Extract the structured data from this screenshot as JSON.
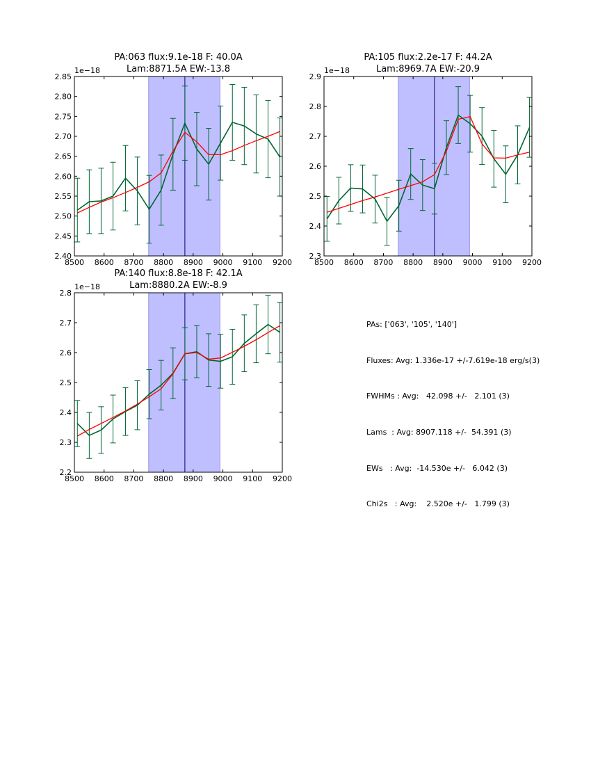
{
  "chart_data": [
    {
      "type": "line",
      "title": [
        "PA:063 flux:9.1e-18 F: 40.0A",
        "Lam:8871.5A EW:-13.8"
      ],
      "offset_label": "1e−18",
      "xlim": [
        8500,
        9200
      ],
      "ylim": [
        2.4,
        2.85
      ],
      "xticks": [
        "8500",
        "8600",
        "8700",
        "8800",
        "8900",
        "9000",
        "9100",
        "9200"
      ],
      "yticks": [
        "2.40",
        "2.45",
        "2.50",
        "2.55",
        "2.60",
        "2.65",
        "2.70",
        "2.75",
        "2.80",
        "2.85"
      ],
      "ytick_values": [
        2.4,
        2.45,
        2.5,
        2.55,
        2.6,
        2.65,
        2.7,
        2.75,
        2.8,
        2.85
      ],
      "shaded_region": [
        8750,
        8990
      ],
      "vline": 8872,
      "series": [
        {
          "role": "data",
          "color": "#006633",
          "x": [
            8510,
            8550,
            8590,
            8630,
            8672,
            8712,
            8752,
            8792,
            8832,
            8872,
            8912,
            8952,
            8992,
            9032,
            9072,
            9112,
            9152,
            9192
          ],
          "y": [
            2.515,
            2.536,
            2.538,
            2.55,
            2.595,
            2.563,
            2.517,
            2.565,
            2.655,
            2.733,
            2.668,
            2.63,
            2.683,
            2.735,
            2.726,
            2.706,
            2.693,
            2.648
          ],
          "err": [
            0.08,
            0.08,
            0.082,
            0.085,
            0.082,
            0.085,
            0.085,
            0.088,
            0.09,
            0.093,
            0.092,
            0.09,
            0.093,
            0.095,
            0.097,
            0.098,
            0.097,
            0.098
          ]
        },
        {
          "role": "model",
          "color": "#ff0000",
          "x": [
            8510,
            8550,
            8590,
            8630,
            8672,
            8712,
            8752,
            8792,
            8832,
            8872,
            8912,
            8952,
            8992,
            9032,
            9072,
            9112,
            9152,
            9192
          ],
          "y": [
            2.508,
            2.522,
            2.535,
            2.546,
            2.559,
            2.572,
            2.586,
            2.608,
            2.663,
            2.71,
            2.686,
            2.654,
            2.654,
            2.664,
            2.677,
            2.689,
            2.7,
            2.712
          ]
        }
      ]
    },
    {
      "type": "line",
      "title": [
        "PA:105 flux:2.2e-17 F: 44.2A",
        "Lam:8969.7A EW:-20.9"
      ],
      "offset_label": "1e−18",
      "xlim": [
        8500,
        9200
      ],
      "ylim": [
        2.3,
        2.9
      ],
      "xticks": [
        "8500",
        "8600",
        "8700",
        "8800",
        "8900",
        "9000",
        "9100",
        "9200"
      ],
      "yticks": [
        "2.3",
        "2.4",
        "2.5",
        "2.6",
        "2.7",
        "2.8",
        "2.9"
      ],
      "ytick_values": [
        2.3,
        2.4,
        2.5,
        2.6,
        2.7,
        2.8,
        2.9
      ],
      "shaded_region": [
        8750,
        8990
      ],
      "vline": 8872,
      "series": [
        {
          "role": "data",
          "color": "#006633",
          "x": [
            8510,
            8550,
            8590,
            8630,
            8672,
            8712,
            8752,
            8792,
            8832,
            8872,
            8912,
            8952,
            8992,
            9032,
            9072,
            9112,
            9152,
            9192
          ],
          "y": [
            2.424,
            2.485,
            2.527,
            2.524,
            2.49,
            2.416,
            2.468,
            2.574,
            2.537,
            2.525,
            2.662,
            2.771,
            2.742,
            2.701,
            2.625,
            2.573,
            2.638,
            2.73
          ],
          "err": [
            0.075,
            0.078,
            0.078,
            0.08,
            0.08,
            0.08,
            0.085,
            0.085,
            0.085,
            0.085,
            0.09,
            0.095,
            0.095,
            0.095,
            0.095,
            0.095,
            0.097,
            0.1
          ]
        },
        {
          "role": "model",
          "color": "#ff0000",
          "x": [
            8510,
            8550,
            8590,
            8630,
            8672,
            8712,
            8752,
            8792,
            8832,
            8872,
            8912,
            8952,
            8992,
            9032,
            9072,
            9112,
            9152,
            9192
          ],
          "y": [
            2.446,
            2.459,
            2.472,
            2.485,
            2.497,
            2.51,
            2.523,
            2.535,
            2.548,
            2.572,
            2.65,
            2.757,
            2.766,
            2.675,
            2.628,
            2.627,
            2.638,
            2.647
          ]
        }
      ]
    },
    {
      "type": "line",
      "title": [
        "PA:140 flux:8.8e-18 F: 42.1A",
        "Lam:8880.2A EW:-8.9"
      ],
      "offset_label": "1e−18",
      "xlim": [
        8500,
        9200
      ],
      "ylim": [
        2.2,
        2.8
      ],
      "xticks": [
        "8500",
        "8600",
        "8700",
        "8800",
        "8900",
        "9000",
        "9100",
        "9200"
      ],
      "yticks": [
        "2.2",
        "2.3",
        "2.4",
        "2.5",
        "2.6",
        "2.7",
        "2.8"
      ],
      "ytick_values": [
        2.2,
        2.3,
        2.4,
        2.5,
        2.6,
        2.7,
        2.8
      ],
      "shaded_region": [
        8750,
        8990
      ],
      "vline": 8872,
      "series": [
        {
          "role": "data",
          "color": "#006633",
          "x": [
            8510,
            8550,
            8590,
            8630,
            8672,
            8712,
            8752,
            8792,
            8832,
            8872,
            8912,
            8952,
            8992,
            9032,
            9072,
            9112,
            9152,
            9192
          ],
          "y": [
            2.363,
            2.323,
            2.341,
            2.378,
            2.403,
            2.424,
            2.461,
            2.491,
            2.531,
            2.596,
            2.603,
            2.575,
            2.571,
            2.586,
            2.631,
            2.663,
            2.694,
            2.668
          ],
          "err": [
            0.077,
            0.077,
            0.078,
            0.08,
            0.08,
            0.082,
            0.082,
            0.083,
            0.085,
            0.087,
            0.087,
            0.088,
            0.09,
            0.092,
            0.095,
            0.097,
            0.098,
            0.1
          ]
        },
        {
          "role": "model",
          "color": "#ff0000",
          "x": [
            8510,
            8550,
            8590,
            8630,
            8672,
            8712,
            8752,
            8792,
            8832,
            8872,
            8912,
            8952,
            8992,
            9032,
            9072,
            9112,
            9152,
            9192
          ],
          "y": [
            2.321,
            2.343,
            2.363,
            2.383,
            2.405,
            2.428,
            2.452,
            2.479,
            2.529,
            2.596,
            2.6,
            2.578,
            2.582,
            2.601,
            2.621,
            2.643,
            2.667,
            2.69
          ]
        }
      ]
    }
  ],
  "summary": [
    "PAs: ['063', '105', '140']",
    "Fluxes: Avg: 1.336e-17 +/-7.619e-18 erg/s(3)",
    "FWHMs : Avg:   42.098 +/-   2.101 (3)",
    "Lams  : Avg: 8907.118 +/-  54.391 (3)",
    "EWs   : Avg:  -14.530e +/-   6.042 (3)",
    "Chi2s   : Avg:    2.520e +/-   1.799 (3)"
  ],
  "colors": {
    "shade": "#bfbfff",
    "shade_edge": "#7f7fd8",
    "vline": "#000080",
    "data": "#006633",
    "model": "#ff0000"
  }
}
